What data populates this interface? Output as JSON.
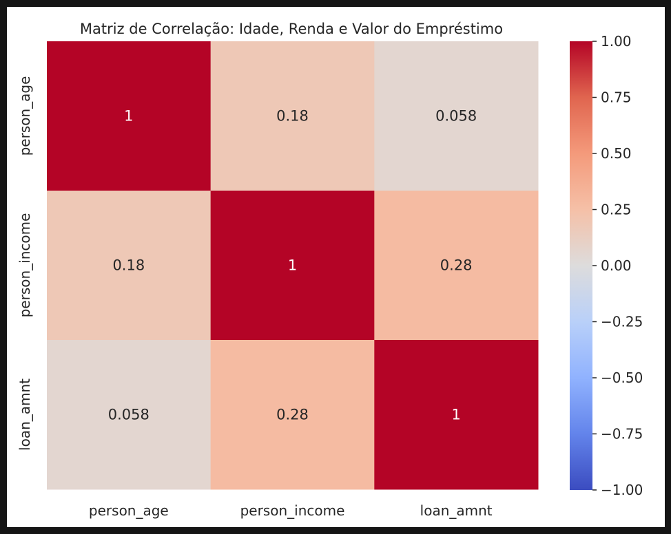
{
  "chart_data": {
    "type": "heatmap",
    "title": "Matriz de Correlação: Idade, Renda e Valor do Empréstimo",
    "xlabel": "",
    "ylabel": "",
    "x_categories": [
      "person_age",
      "person_income",
      "loan_amnt"
    ],
    "y_categories": [
      "person_age",
      "person_income",
      "loan_amnt"
    ],
    "values": [
      [
        1,
        0.18,
        0.058
      ],
      [
        0.18,
        1,
        0.28
      ],
      [
        0.058,
        0.28,
        1
      ]
    ],
    "annotations": [
      [
        "1",
        "0.18",
        "0.058"
      ],
      [
        "0.18",
        "1",
        "0.28"
      ],
      [
        "0.058",
        "0.28",
        "1"
      ]
    ],
    "colormap": "coolwarm",
    "vmin": -1,
    "vmax": 1,
    "colorbar": {
      "ticks": [
        1,
        0.75,
        0.5,
        0.25,
        0,
        -0.25,
        -0.5,
        -0.75,
        -1
      ],
      "tick_labels": [
        "1.00",
        "0.75",
        "0.50",
        "0.25",
        "0.00",
        "−0.25",
        "−0.50",
        "−0.75",
        "−1.00"
      ]
    },
    "grid": false,
    "legend": "colorbar right"
  }
}
